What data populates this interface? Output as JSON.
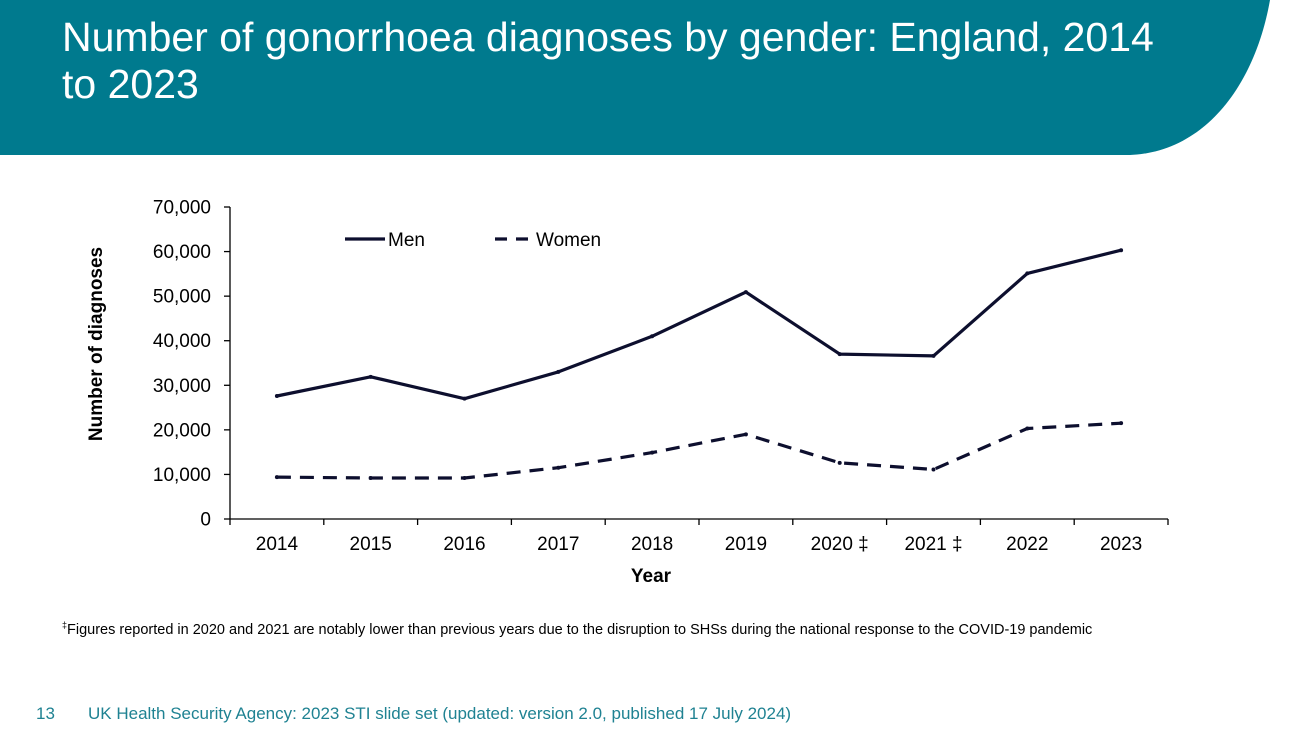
{
  "header": {
    "title": "Number of gonorrhoea diagnoses by gender: England, 2014 to 2023",
    "band_color": "#007a8e"
  },
  "chart_data": {
    "type": "line",
    "categories": [
      "2014",
      "2015",
      "2016",
      "2017",
      "2018",
      "2019",
      "2020 ‡",
      "2021 ‡",
      "2022",
      "2023"
    ],
    "series": [
      {
        "name": "Men",
        "style": "solid",
        "color": "#0d0f2e",
        "values": [
          27600,
          31900,
          27000,
          33000,
          41000,
          50900,
          37000,
          36600,
          55100,
          60300
        ]
      },
      {
        "name": "Women",
        "style": "dashed",
        "color": "#0d0f2e",
        "values": [
          9400,
          9200,
          9200,
          11500,
          14900,
          19000,
          12600,
          11100,
          20300,
          21500
        ]
      }
    ],
    "xlabel": "Year",
    "ylabel": "Number of diagnoses",
    "ylim": [
      0,
      70000
    ],
    "yticks": [
      0,
      10000,
      20000,
      30000,
      40000,
      50000,
      60000,
      70000
    ],
    "ytick_labels": [
      "0",
      "10,000",
      "20,000",
      "30,000",
      "40,000",
      "50,000",
      "60,000",
      "70,000"
    ],
    "grid": false,
    "legend_position": "top-left"
  },
  "footnote": {
    "marker": "‡",
    "text": "Figures reported in 2020 and 2021 are notably lower than previous years due to the disruption to SHSs during the national response to the COVID-19 pandemic"
  },
  "footer": {
    "slide_number": "13",
    "source": "UK Health Security Agency: 2023 STI slide set (updated: version 2.0, published 17 July 2024)",
    "color": "#1f8292"
  }
}
